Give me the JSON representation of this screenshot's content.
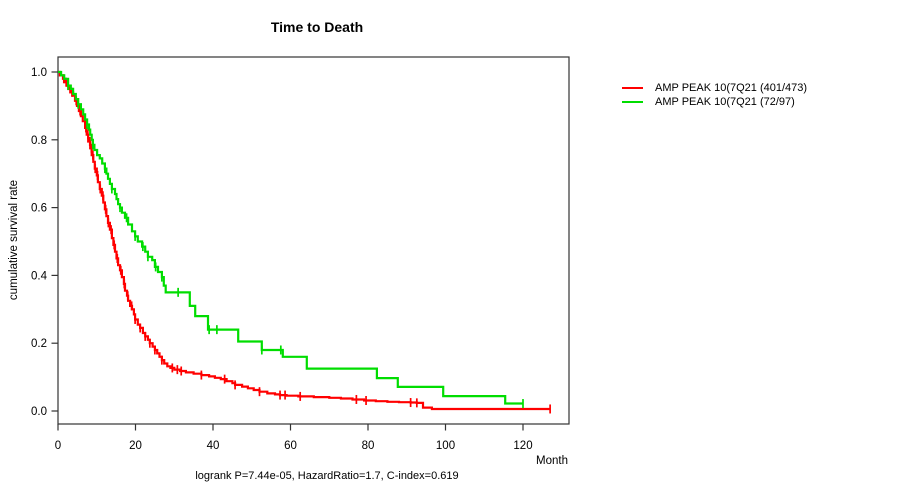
{
  "title": "Time to Death",
  "annotation": "logrank P=7.44e-05, HazardRatio=1.7, C-index=0.619",
  "x_axis": {
    "label": "Month",
    "ticks": [
      "0",
      "20",
      "40",
      "60",
      "80",
      "100",
      "120"
    ],
    "tick_values": [
      0,
      20,
      40,
      60,
      80,
      100,
      120
    ]
  },
  "y_axis": {
    "label": "cumulative survival rate",
    "ticks": [
      "0.0",
      "0.2",
      "0.4",
      "0.6",
      "0.8",
      "1.0"
    ],
    "tick_values": [
      0,
      0.2,
      0.4,
      0.6,
      0.8,
      1.0
    ]
  },
  "legend": {
    "items": [
      {
        "label": "AMP PEAK 10(7Q21 (401/473)",
        "color": "#ff0000"
      },
      {
        "label": "AMP PEAK 10(7Q21 (72/97)",
        "color": "#00dd00"
      }
    ]
  },
  "colors": {
    "curve_red": "#ff0000",
    "curve_green": "#00dd00",
    "axis": "#333333",
    "text": "#000000"
  },
  "chart_data": {
    "type": "line",
    "subtype": "kaplan-meier-step",
    "title": "Time to Death",
    "xlabel": "Month",
    "ylabel": "cumulative survival rate",
    "xlim": [
      0,
      132
    ],
    "ylim": [
      0,
      1
    ],
    "grid": false,
    "legend_position": "right-outside",
    "annotation": "logrank P=7.44e-05, HazardRatio=1.7, C-index=0.619",
    "series": [
      {
        "name": "AMP PEAK 10(7Q21 (401/473)",
        "color": "#ff0000",
        "n_events": "401/473",
        "steps": [
          [
            0,
            1.0
          ],
          [
            0.5,
            0.99
          ],
          [
            1.3,
            0.98
          ],
          [
            1.8,
            0.97
          ],
          [
            2.3,
            0.96
          ],
          [
            2.8,
            0.95
          ],
          [
            3.4,
            0.94
          ],
          [
            3.9,
            0.93
          ],
          [
            4.4,
            0.915
          ],
          [
            4.9,
            0.9
          ],
          [
            5.4,
            0.885
          ],
          [
            5.9,
            0.87
          ],
          [
            6.4,
            0.855
          ],
          [
            7.0,
            0.835
          ],
          [
            7.4,
            0.815
          ],
          [
            7.8,
            0.795
          ],
          [
            8.3,
            0.775
          ],
          [
            8.7,
            0.755
          ],
          [
            9.1,
            0.735
          ],
          [
            9.5,
            0.715
          ],
          [
            10.0,
            0.695
          ],
          [
            10.3,
            0.675
          ],
          [
            10.8,
            0.655
          ],
          [
            11.3,
            0.635
          ],
          [
            11.7,
            0.615
          ],
          [
            12.1,
            0.595
          ],
          [
            12.5,
            0.575
          ],
          [
            12.9,
            0.555
          ],
          [
            13.4,
            0.535
          ],
          [
            13.9,
            0.51
          ],
          [
            14.3,
            0.49
          ],
          [
            14.7,
            0.47
          ],
          [
            15.1,
            0.45
          ],
          [
            15.5,
            0.43
          ],
          [
            16.0,
            0.415
          ],
          [
            16.5,
            0.395
          ],
          [
            17.0,
            0.375
          ],
          [
            17.3,
            0.355
          ],
          [
            17.8,
            0.34
          ],
          [
            18.1,
            0.325
          ],
          [
            18.6,
            0.31
          ],
          [
            19.1,
            0.3
          ],
          [
            19.6,
            0.285
          ],
          [
            19.9,
            0.27
          ],
          [
            20.6,
            0.255
          ],
          [
            21.2,
            0.245
          ],
          [
            21.9,
            0.23
          ],
          [
            22.5,
            0.22
          ],
          [
            23.2,
            0.21
          ],
          [
            23.7,
            0.2
          ],
          [
            24.4,
            0.19
          ],
          [
            25.0,
            0.18
          ],
          [
            25.6,
            0.17
          ],
          [
            26.2,
            0.16
          ],
          [
            26.8,
            0.15
          ],
          [
            27.4,
            0.14
          ],
          [
            28.2,
            0.132
          ],
          [
            29.0,
            0.127
          ],
          [
            30.0,
            0.122
          ],
          [
            31.5,
            0.118
          ],
          [
            33.0,
            0.114
          ],
          [
            35.0,
            0.11
          ],
          [
            37.0,
            0.106
          ],
          [
            39.0,
            0.102
          ],
          [
            40.5,
            0.098
          ],
          [
            42.0,
            0.094
          ],
          [
            43.5,
            0.088
          ],
          [
            45.0,
            0.082
          ],
          [
            45.7,
            0.077
          ],
          [
            47.5,
            0.072
          ],
          [
            49.0,
            0.067
          ],
          [
            50.5,
            0.062
          ],
          [
            52.0,
            0.057
          ],
          [
            54.0,
            0.052
          ],
          [
            56.0,
            0.049
          ],
          [
            57.3,
            0.047
          ],
          [
            59.0,
            0.045
          ],
          [
            62.0,
            0.043
          ],
          [
            66.0,
            0.041
          ],
          [
            70.0,
            0.039
          ],
          [
            73.0,
            0.037
          ],
          [
            76.0,
            0.034
          ],
          [
            79.0,
            0.031
          ],
          [
            82.0,
            0.029
          ],
          [
            85.0,
            0.027
          ],
          [
            88.0,
            0.026
          ],
          [
            91.0,
            0.025
          ],
          [
            92.6,
            0.024
          ],
          [
            94.2,
            0.01
          ],
          [
            96.5,
            0.006
          ],
          [
            127,
            0.006
          ]
        ],
        "censor_months": [
          1.5,
          2.1,
          2.6,
          3.1,
          3.6,
          4.7,
          5.7,
          7.2,
          7.7,
          8.2,
          8.6,
          9.0,
          9.6,
          10.2,
          10.9,
          11.6,
          12.3,
          13.0,
          13.7,
          14.5,
          15.3,
          16.2,
          17.1,
          18.0,
          19.0,
          19.9,
          21.2,
          22.5,
          23.7,
          25.0,
          26.8,
          29.5,
          30.8,
          31.8,
          37.0,
          43.0,
          45.7,
          52.0,
          57.3,
          58.6,
          62.5,
          77.0,
          79.5,
          91.0,
          92.6,
          127
        ]
      },
      {
        "name": "AMP PEAK 10(7Q21 (72/97)",
        "color": "#00dd00",
        "n_events": "72/97",
        "steps": [
          [
            0,
            1.0
          ],
          [
            0.8,
            0.99
          ],
          [
            1.6,
            0.98
          ],
          [
            2.6,
            0.96
          ],
          [
            3.3,
            0.95
          ],
          [
            3.9,
            0.935
          ],
          [
            4.6,
            0.92
          ],
          [
            5.2,
            0.905
          ],
          [
            5.9,
            0.89
          ],
          [
            6.5,
            0.875
          ],
          [
            7.0,
            0.86
          ],
          [
            7.5,
            0.845
          ],
          [
            8.0,
            0.83
          ],
          [
            8.3,
            0.815
          ],
          [
            8.7,
            0.8
          ],
          [
            9.0,
            0.785
          ],
          [
            9.4,
            0.77
          ],
          [
            10.1,
            0.755
          ],
          [
            10.8,
            0.745
          ],
          [
            11.4,
            0.73
          ],
          [
            12.1,
            0.715
          ],
          [
            12.5,
            0.7
          ],
          [
            12.9,
            0.685
          ],
          [
            13.4,
            0.67
          ],
          [
            13.9,
            0.655
          ],
          [
            14.7,
            0.64
          ],
          [
            15.1,
            0.625
          ],
          [
            15.5,
            0.61
          ],
          [
            16.0,
            0.6
          ],
          [
            16.5,
            0.585
          ],
          [
            17.3,
            0.57
          ],
          [
            18.1,
            0.55
          ],
          [
            19.1,
            0.53
          ],
          [
            19.9,
            0.515
          ],
          [
            20.6,
            0.5
          ],
          [
            21.7,
            0.485
          ],
          [
            22.5,
            0.47
          ],
          [
            23.2,
            0.455
          ],
          [
            24.3,
            0.445
          ],
          [
            25.0,
            0.425
          ],
          [
            25.8,
            0.41
          ],
          [
            26.8,
            0.395
          ],
          [
            27.3,
            0.37
          ],
          [
            27.8,
            0.35
          ],
          [
            34.0,
            0.31
          ],
          [
            35.4,
            0.28
          ],
          [
            38.7,
            0.24
          ],
          [
            46.5,
            0.205
          ],
          [
            52.6,
            0.18
          ],
          [
            58.0,
            0.16
          ],
          [
            64.2,
            0.125
          ],
          [
            82.3,
            0.097
          ],
          [
            87.7,
            0.071
          ],
          [
            99.4,
            0.044
          ],
          [
            115.4,
            0.022
          ],
          [
            120,
            0.022
          ]
        ],
        "censor_months": [
          2.6,
          5.2,
          7.5,
          9.0,
          12.1,
          13.9,
          16.0,
          17.7,
          19.9,
          21.9,
          23.2,
          25.2,
          26.8,
          31.0,
          39.0,
          41.0,
          52.6,
          57.5,
          120
        ]
      }
    ]
  }
}
